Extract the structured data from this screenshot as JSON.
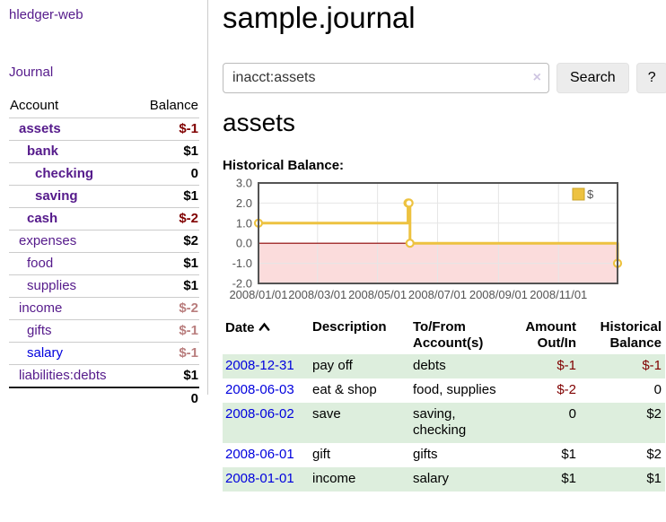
{
  "colors": {
    "accent_purple": "#551a8b",
    "link_blue": "#0000dd",
    "negative_dark": "#800000",
    "negative_light": "#b97e7e",
    "row_highlight_green": "#ddeedd",
    "chart_line_gold": "#edc240",
    "chart_marker_fill": "#ffffff",
    "chart_negative_fill": "#fbdcdc",
    "chart_zero_line": "#8b0000",
    "chart_border": "#545454",
    "chart_grid": "#e6e6e6",
    "tick_text": "#545454",
    "legend_box_border": "#c9a32a"
  },
  "sidebar": {
    "app_title": "hledger-web",
    "journal_label": "Journal",
    "table": {
      "headers": {
        "account": "Account",
        "balance": "Balance"
      },
      "accounts": [
        {
          "name": "assets",
          "indent": 1,
          "bold": true,
          "name_color": "purple",
          "balance": "$-1",
          "balance_color": "dark-red"
        },
        {
          "name": "bank",
          "indent": 2,
          "bold": true,
          "name_color": "purple",
          "balance": "$1",
          "balance_color": "black"
        },
        {
          "name": "checking",
          "indent": 3,
          "bold": true,
          "name_color": "purple",
          "balance": "0",
          "balance_color": "black"
        },
        {
          "name": "saving",
          "indent": 3,
          "bold": true,
          "name_color": "purple",
          "balance": "$1",
          "balance_color": "black"
        },
        {
          "name": "cash",
          "indent": 2,
          "bold": true,
          "name_color": "purple",
          "balance": "$-2",
          "balance_color": "dark-red"
        },
        {
          "name": "expenses",
          "indent": 1,
          "bold": false,
          "name_color": "purple",
          "balance": "$2",
          "balance_color": "black"
        },
        {
          "name": "food",
          "indent": 2,
          "bold": false,
          "name_color": "purple",
          "balance": "$1",
          "balance_color": "black"
        },
        {
          "name": "supplies",
          "indent": 2,
          "bold": false,
          "name_color": "purple",
          "balance": "$1",
          "balance_color": "black"
        },
        {
          "name": "income",
          "indent": 1,
          "bold": false,
          "name_color": "purple",
          "balance": "$-2",
          "balance_color": "light-red"
        },
        {
          "name": "gifts",
          "indent": 2,
          "bold": false,
          "name_color": "purple",
          "balance": "$-1",
          "balance_color": "light-red"
        },
        {
          "name": "salary",
          "indent": 2,
          "bold": false,
          "name_color": "blue",
          "balance": "$-1",
          "balance_color": "light-red"
        },
        {
          "name": "liabilities:debts",
          "indent": 1,
          "bold": false,
          "name_color": "purple",
          "balance": "$1",
          "balance_color": "black"
        }
      ],
      "total": "0"
    }
  },
  "main": {
    "title": "sample.journal",
    "search": {
      "value": "inacct:assets",
      "clear_icon": "×",
      "button_label": "Search",
      "help_label": "?"
    },
    "account_heading": "assets",
    "chart_label": "Historical Balance:"
  },
  "chart_data": {
    "type": "line",
    "title": "Historical Balance",
    "step": true,
    "grid": true,
    "negative_region_shaded": true,
    "x_range": [
      "2008-01-01",
      "2008-12-31"
    ],
    "ylim": [
      -2,
      3
    ],
    "y_ticks": [
      3.0,
      2.0,
      1.0,
      0.0,
      -1.0,
      -2.0
    ],
    "x_ticks": [
      {
        "label": "2008/01/01",
        "date": "2008-01-01"
      },
      {
        "label": "2008/03/01",
        "date": "2008-03-01"
      },
      {
        "label": "2008/05/01",
        "date": "2008-05-01"
      },
      {
        "label": "2008/07/01",
        "date": "2008-07-01"
      },
      {
        "label": "2008/09/01",
        "date": "2008-09-01"
      },
      {
        "label": "2008/11/01",
        "date": "2008-11-01"
      }
    ],
    "series": [
      {
        "name": "$",
        "color": "#edc240",
        "points": [
          {
            "date": "2008-01-01",
            "value": 1
          },
          {
            "date": "2008-06-01",
            "value": 2
          },
          {
            "date": "2008-06-02",
            "value": 2
          },
          {
            "date": "2008-06-03",
            "value": 0
          },
          {
            "date": "2008-12-31",
            "value": -1
          }
        ]
      }
    ],
    "legend": {
      "position": "top-right",
      "entries": [
        {
          "label": "$",
          "color": "#edc240"
        }
      ]
    }
  },
  "register": {
    "headers": [
      {
        "label": "Date",
        "align": "left",
        "sorted": "asc"
      },
      {
        "label": "Description",
        "align": "left"
      },
      {
        "label": "To/From Account(s)",
        "align": "left"
      },
      {
        "label": "Amount Out/In",
        "align": "right"
      },
      {
        "label": "Historical Balance",
        "align": "right"
      }
    ],
    "rows": [
      {
        "date": "2008-12-31",
        "description": "pay off",
        "accounts": [
          "debts"
        ],
        "amount": "$-1",
        "amount_negative": true,
        "balance": "$-1",
        "balance_negative": true,
        "highlighted": true
      },
      {
        "date": "2008-06-03",
        "description": "eat & shop",
        "accounts": [
          "food",
          "supplies"
        ],
        "amount": "$-2",
        "amount_negative": true,
        "balance": "0",
        "balance_negative": false,
        "highlighted": false
      },
      {
        "date": "2008-06-02",
        "description": "save",
        "accounts": [
          "saving",
          "checking"
        ],
        "amount": "0",
        "amount_negative": false,
        "balance": "$2",
        "balance_negative": false,
        "highlighted": true
      },
      {
        "date": "2008-06-01",
        "description": "gift",
        "accounts": [
          "gifts"
        ],
        "amount": "$1",
        "amount_negative": false,
        "balance": "$2",
        "balance_negative": false,
        "highlighted": false
      },
      {
        "date": "2008-01-01",
        "description": "income",
        "accounts": [
          "salary"
        ],
        "amount": "$1",
        "amount_negative": false,
        "balance": "$1",
        "balance_negative": false,
        "highlighted": true
      }
    ]
  }
}
